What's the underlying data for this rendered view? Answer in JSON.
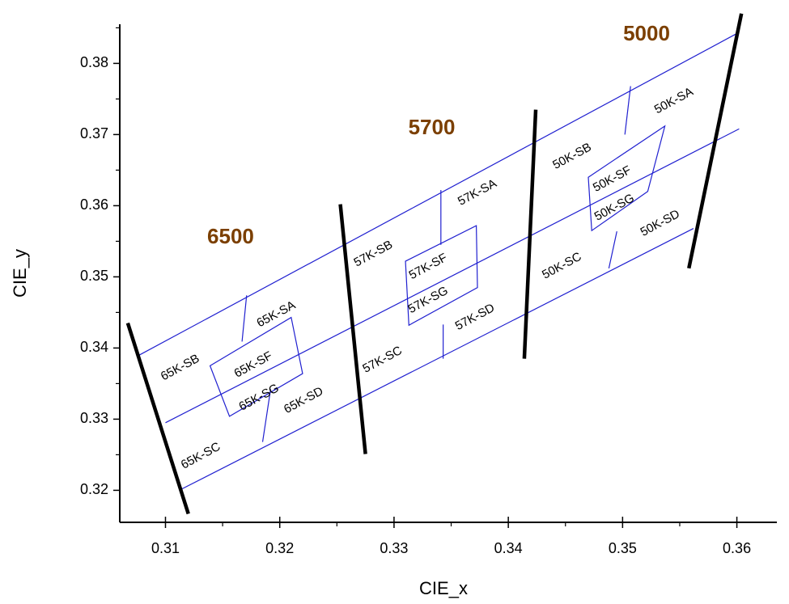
{
  "chart_data": {
    "type": "diagram",
    "xlabel": "CIE_x",
    "ylabel": "CIE_y",
    "xlim": [
      0.306,
      0.3635
    ],
    "ylim": [
      0.3155,
      0.3855
    ],
    "x_ticks": [
      "0.31",
      "0.32",
      "0.33",
      "0.34",
      "0.35",
      "0.36"
    ],
    "x_tick_values": [
      0.31,
      0.32,
      0.33,
      0.34,
      0.35,
      0.36
    ],
    "y_ticks": [
      "0.32",
      "0.33",
      "0.34",
      "0.35",
      "0.36",
      "0.37",
      "0.38"
    ],
    "y_tick_values": [
      0.32,
      0.33,
      0.34,
      0.35,
      0.36,
      0.37,
      0.38
    ],
    "colors": {
      "grid": "#2020d0",
      "boundary": "#000000",
      "cct_label": "#7b3f00"
    },
    "cct_labels": [
      {
        "text": "6500",
        "x": 0.3157,
        "y": 0.3555
      },
      {
        "text": "5700",
        "x": 0.3333,
        "y": 0.3708
      },
      {
        "text": "5000",
        "x": 0.3521,
        "y": 0.384
      }
    ],
    "boundaries": [
      {
        "x": [
          0.3067,
          0.312
        ],
        "y": [
          0.3435,
          0.3167
        ]
      },
      {
        "x": [
          0.3253,
          0.3275
        ],
        "y": [
          0.3602,
          0.3251
        ]
      },
      {
        "x": [
          0.3424,
          0.3414
        ],
        "y": [
          0.3735,
          0.3385
        ]
      },
      {
        "x": [
          0.3604,
          0.3558
        ],
        "y": [
          0.387,
          0.3512
        ]
      }
    ],
    "quad_lines": [
      {
        "x": [
          0.3077,
          0.36
        ],
        "y": [
          0.339,
          0.3842
        ]
      },
      {
        "x": [
          0.31,
          0.3602
        ],
        "y": [
          0.3295,
          0.3708
        ]
      },
      {
        "x": [
          0.3112,
          0.3562
        ],
        "y": [
          0.32,
          0.3568
        ]
      },
      {
        "x": [
          0.3171,
          0.3167
        ],
        "y": [
          0.3474,
          0.3409
        ]
      },
      {
        "x": [
          0.3192,
          0.3185
        ],
        "y": [
          0.3342,
          0.3268
        ]
      },
      {
        "x": [
          0.3341,
          0.3341
        ],
        "y": [
          0.3622,
          0.3545
        ]
      },
      {
        "x": [
          0.3343,
          0.3343
        ],
        "y": [
          0.3433,
          0.3385
        ]
      },
      {
        "x": [
          0.3507,
          0.3502
        ],
        "y": [
          0.3768,
          0.37
        ]
      },
      {
        "x": [
          0.3495,
          0.3488
        ],
        "y": [
          0.3564,
          0.3512
        ]
      }
    ],
    "center_boxes": [
      {
        "x": [
          0.3139,
          0.321,
          0.322,
          0.3156
        ],
        "y": [
          0.3375,
          0.3443,
          0.3364,
          0.3304
        ]
      },
      {
        "x": [
          0.331,
          0.3372,
          0.3373,
          0.3313
        ],
        "y": [
          0.3522,
          0.3572,
          0.3485,
          0.3432
        ]
      },
      {
        "x": [
          0.347,
          0.3537,
          0.3522,
          0.3473
        ],
        "y": [
          0.364,
          0.3712,
          0.362,
          0.3565
        ]
      }
    ],
    "bin_labels": [
      {
        "text": "65K-SA",
        "x": 0.3197,
        "y": 0.3447
      },
      {
        "text": "65K-SB",
        "x": 0.3113,
        "y": 0.3372
      },
      {
        "text": "65K-SF",
        "x": 0.3177,
        "y": 0.3376
      },
      {
        "text": "65K-SG",
        "x": 0.3182,
        "y": 0.333
      },
      {
        "text": "65K-SD",
        "x": 0.3221,
        "y": 0.3326
      },
      {
        "text": "65K-SC",
        "x": 0.3131,
        "y": 0.3248
      },
      {
        "text": "57K-SB",
        "x": 0.3282,
        "y": 0.3532
      },
      {
        "text": "57K-SA",
        "x": 0.3373,
        "y": 0.3618
      },
      {
        "text": "57K-SF",
        "x": 0.333,
        "y": 0.3514
      },
      {
        "text": "57K-SG",
        "x": 0.333,
        "y": 0.3467
      },
      {
        "text": "57K-SD",
        "x": 0.3371,
        "y": 0.3443
      },
      {
        "text": "57K-SC",
        "x": 0.329,
        "y": 0.3383
      },
      {
        "text": "50K-SB",
        "x": 0.3456,
        "y": 0.3669
      },
      {
        "text": "50K-SA",
        "x": 0.3545,
        "y": 0.3747
      },
      {
        "text": "50K-SF",
        "x": 0.3491,
        "y": 0.3637
      },
      {
        "text": "50K-SG",
        "x": 0.3493,
        "y": 0.3597
      },
      {
        "text": "50K-SD",
        "x": 0.3533,
        "y": 0.3575
      },
      {
        "text": "50K-SC",
        "x": 0.3447,
        "y": 0.3515
      }
    ]
  }
}
